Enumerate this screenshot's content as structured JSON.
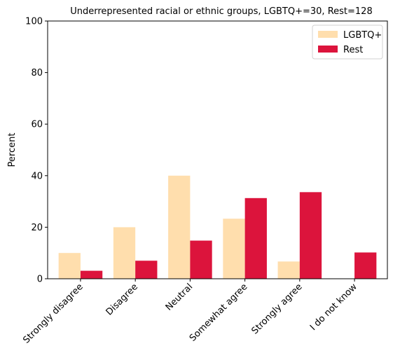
{
  "chart_data": {
    "type": "bar",
    "title": "Underrepresented racial or ethnic groups, LGBTQ+=30, Rest=128",
    "xlabel": "",
    "ylabel": "Percent",
    "ylim": [
      0,
      100
    ],
    "yticks": [
      0,
      20,
      40,
      60,
      80,
      100
    ],
    "categories": [
      "Strongly disagree",
      "Disagree",
      "Neutral",
      "Somewhat agree",
      "Strongly agree",
      "I do not know"
    ],
    "series": [
      {
        "name": "LGBTQ+",
        "color": "#FFDEAD",
        "values": [
          10.0,
          20.0,
          40.0,
          23.3,
          6.7,
          0.0
        ]
      },
      {
        "name": "Rest",
        "color": "#DC143C",
        "values": [
          3.1,
          7.0,
          14.8,
          31.3,
          33.6,
          10.2
        ]
      }
    ],
    "legend": "top-right",
    "grid": false
  }
}
